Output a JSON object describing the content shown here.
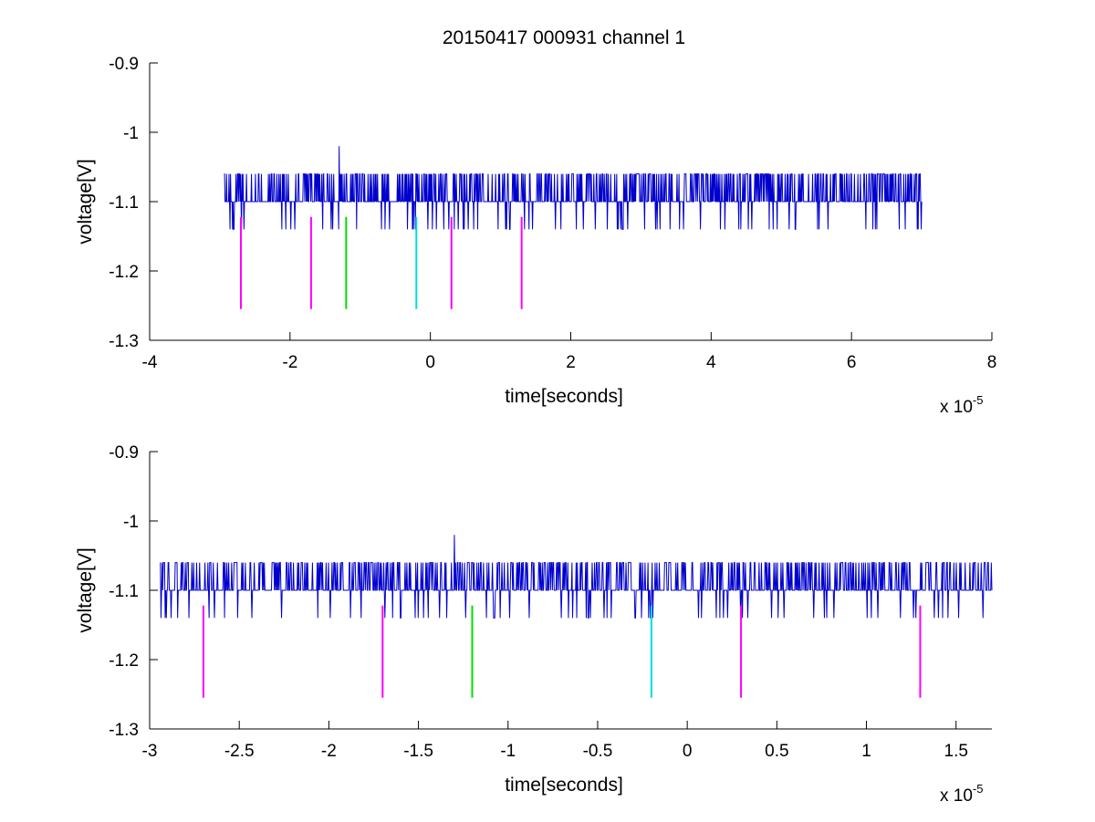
{
  "chart_data": [
    {
      "type": "line",
      "title": "20150417 000931 channel 1",
      "xlabel": "time[seconds]",
      "ylabel": "voltage[V]",
      "x_multiplier_base": "x 10",
      "x_multiplier_exp": "-5",
      "xlim": [
        -4e-05,
        8e-05
      ],
      "ylim": [
        -1.3,
        -0.9
      ],
      "x_ticks": [
        -4e-05,
        -2e-05,
        0,
        2e-05,
        4e-05,
        6e-05,
        8e-05
      ],
      "x_tick_labels": [
        "-4",
        "-2",
        "0",
        "2",
        "4",
        "6",
        "8"
      ],
      "y_ticks": [
        -1.3,
        -1.2,
        -1.1,
        -1.0,
        -0.9
      ],
      "y_tick_labels": [
        "-1.3",
        "-1.2",
        "-1.1",
        "-1",
        "-0.9"
      ],
      "grid": false,
      "series": [
        {
          "color": "#0000cc",
          "x_range": [
            -2.94e-05,
            7e-05
          ],
          "baseline": -1.1,
          "levels": [
            -1.06,
            -1.1,
            -1.14
          ]
        }
      ],
      "markers": [
        {
          "x": -2.7e-05,
          "y_range": [
            -1.255,
            -1.122
          ],
          "color": "#ff00ff"
        },
        {
          "x": -1.7e-05,
          "y_range": [
            -1.255,
            -1.122
          ],
          "color": "#ff00ff"
        },
        {
          "x": -1.2e-05,
          "y_range": [
            -1.255,
            -1.122
          ],
          "color": "#00dd00"
        },
        {
          "x": -2e-06,
          "y_range": [
            -1.255,
            -1.122
          ],
          "color": "#00dddd"
        },
        {
          "x": 3e-06,
          "y_range": [
            -1.255,
            -1.122
          ],
          "color": "#ff00ff"
        },
        {
          "x": 1.3e-05,
          "y_range": [
            -1.255,
            -1.122
          ],
          "color": "#ff00ff"
        }
      ]
    },
    {
      "type": "line",
      "title": "",
      "xlabel": "time[seconds]",
      "ylabel": "voltage[V]",
      "x_multiplier_base": "x 10",
      "x_multiplier_exp": "-5",
      "xlim": [
        -3e-05,
        1.7e-05
      ],
      "ylim": [
        -1.3,
        -0.9
      ],
      "x_ticks": [
        -3e-05,
        -2.5e-05,
        -2e-05,
        -1.5e-05,
        -1e-05,
        -5e-06,
        0,
        5e-06,
        1e-05,
        1.5e-05
      ],
      "x_tick_labels": [
        "-3",
        "-2.5",
        "-2",
        "-1.5",
        "-1",
        "-0.5",
        "0",
        "0.5",
        "1",
        "1.5"
      ],
      "y_ticks": [
        -1.3,
        -1.2,
        -1.1,
        -1.0,
        -0.9
      ],
      "y_tick_labels": [
        "-1.3",
        "-1.2",
        "-1.1",
        "-1",
        "-0.9"
      ],
      "grid": false,
      "series": [
        {
          "color": "#0000cc",
          "x_range": [
            -2.94e-05,
            1.7e-05
          ],
          "baseline": -1.1,
          "levels": [
            -1.06,
            -1.1,
            -1.14
          ]
        }
      ],
      "markers": [
        {
          "x": -2.7e-05,
          "y_range": [
            -1.255,
            -1.122
          ],
          "color": "#ff00ff"
        },
        {
          "x": -1.7e-05,
          "y_range": [
            -1.255,
            -1.122
          ],
          "color": "#ff00ff"
        },
        {
          "x": -1.2e-05,
          "y_range": [
            -1.255,
            -1.122
          ],
          "color": "#00dd00"
        },
        {
          "x": -2e-06,
          "y_range": [
            -1.255,
            -1.122
          ],
          "color": "#00dddd"
        },
        {
          "x": 3e-06,
          "y_range": [
            -1.255,
            -1.122
          ],
          "color": "#ff00ff"
        },
        {
          "x": 1.3e-05,
          "y_range": [
            -1.255,
            -1.122
          ],
          "color": "#ff00ff"
        }
      ]
    }
  ]
}
